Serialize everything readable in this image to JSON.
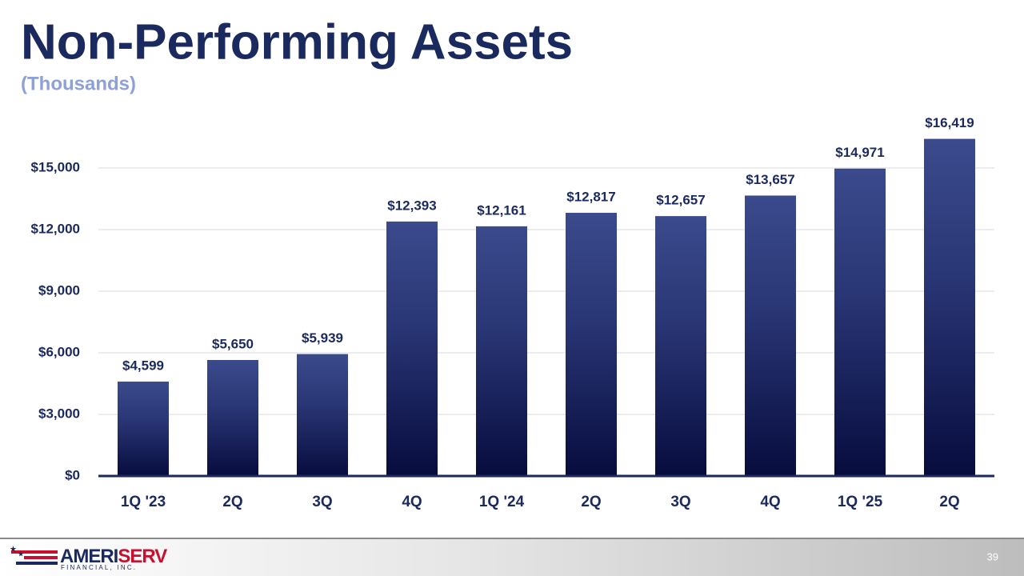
{
  "chart_data": {
    "type": "bar",
    "title": "Non-Performing Assets",
    "subtitle": "(Thousands)",
    "categories": [
      "1Q '23",
      "2Q",
      "3Q",
      "4Q",
      "1Q '24",
      "2Q",
      "3Q",
      "4Q",
      "1Q '25",
      "2Q"
    ],
    "values": [
      4599,
      5650,
      5939,
      12393,
      12161,
      12817,
      12657,
      13657,
      14971,
      16419
    ],
    "value_labels": [
      "$4,599",
      "$5,650",
      "$5,939",
      "$12,393",
      "$12,161",
      "$12,817",
      "$12,657",
      "$13,657",
      "$14,971",
      "$16,419"
    ],
    "color": "#1f2a66",
    "ylim": [
      0,
      18000
    ],
    "yticks": [
      {
        "value": 0,
        "label": "$0"
      },
      {
        "value": 3000,
        "label": "$3,000"
      },
      {
        "value": 6000,
        "label": "$6,000"
      },
      {
        "value": 9000,
        "label": "$9,000"
      },
      {
        "value": 12000,
        "label": "$12,000"
      },
      {
        "value": 15000,
        "label": "$15,000"
      }
    ],
    "grid": true
  },
  "footer": {
    "logo": [
      "AMERI",
      "SERV"
    ],
    "tagline": "FINANCIAL, INC.",
    "page_number": "39"
  }
}
